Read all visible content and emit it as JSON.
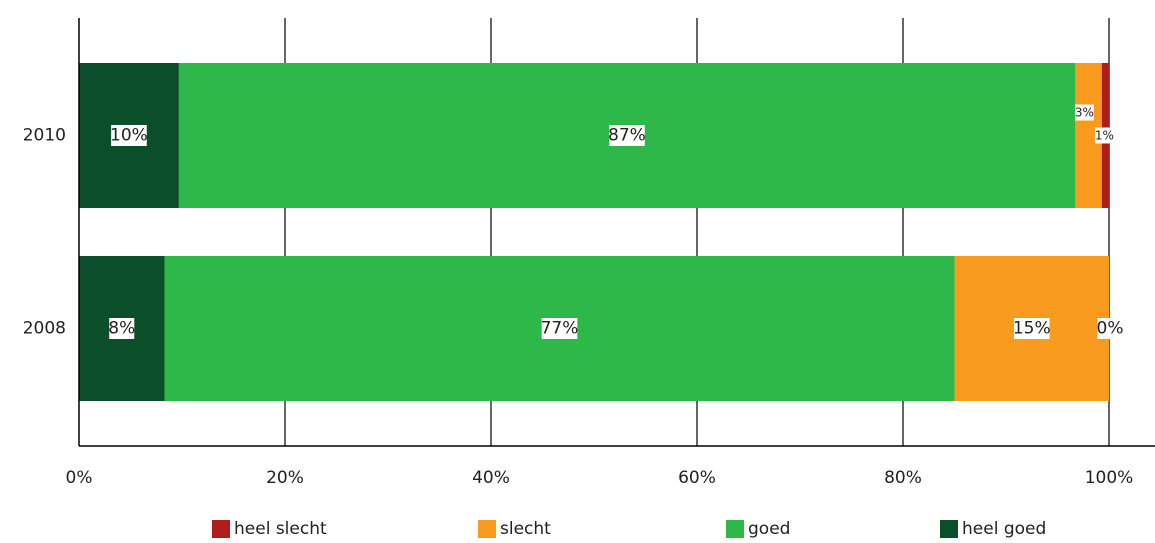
{
  "chart_data": {
    "type": "bar",
    "orientation": "horizontal",
    "stacked": true,
    "categories": [
      "2010",
      "2008"
    ],
    "series": [
      {
        "name": "heel goed",
        "color": "#0b4f2a",
        "values": [
          9.7,
          8.3
        ],
        "labels": [
          "10%",
          "8%"
        ]
      },
      {
        "name": "goed",
        "color": "#2eb84a",
        "values": [
          87,
          76.7
        ],
        "labels": [
          "87%",
          "77%"
        ]
      },
      {
        "name": "slecht",
        "color": "#f79a1e",
        "values": [
          2.6,
          15
        ],
        "labels": [
          "3%",
          "15%"
        ]
      },
      {
        "name": "heel slecht",
        "color": "#b01c1c",
        "values": [
          0.7,
          0
        ],
        "labels": [
          "1%",
          "0%"
        ]
      }
    ],
    "xlim": [
      0,
      100
    ],
    "x_ticks": [
      "0%",
      "20%",
      "40%",
      "60%",
      "80%",
      "100%"
    ],
    "grid": "vertical",
    "legend": {
      "position": "bottom",
      "order": [
        "heel slecht",
        "slecht",
        "goed",
        "heel goed"
      ]
    }
  }
}
